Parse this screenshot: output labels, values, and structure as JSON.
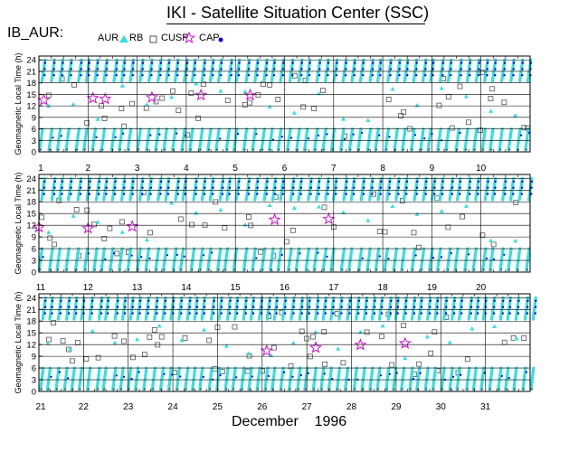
{
  "header": {
    "title": "IKI - Satellite Situation Center (SSC)",
    "dataset": "IB_AUR:"
  },
  "legend": {
    "items": [
      {
        "label": "AUR",
        "symbol": "filled-triangle",
        "color": "#33e0e0"
      },
      {
        "label": "RB",
        "symbol": "open-square",
        "color": "#444444"
      },
      {
        "label": "CUSP",
        "symbol": "open-star",
        "color": "#d10fcf"
      },
      {
        "label": "CAP",
        "symbol": "filled-dot",
        "color": "#0000e0"
      }
    ]
  },
  "footer": {
    "month": "December",
    "year": "1996"
  },
  "colors": {
    "aur": "#33e0e0",
    "rb": "#555555",
    "cusp": "#d10fcf",
    "cap": "#0a00d8",
    "grid": "#000000"
  },
  "chart_data": [
    {
      "type": "scatter",
      "ylabel": "Geomagnetic Local Time (h)",
      "ylim": [
        0,
        25
      ],
      "yticks": [
        0,
        3,
        6,
        9,
        12,
        15,
        18,
        21,
        24
      ],
      "xlim": [
        1,
        11
      ],
      "xticks": [
        "1",
        "2",
        "3",
        "4",
        "5",
        "6",
        "7",
        "8",
        "9",
        "10"
      ],
      "cusp_points": [
        [
          1.1,
          13.5
        ],
        [
          2.1,
          14
        ],
        [
          2.35,
          13.8
        ],
        [
          3.3,
          14.2
        ],
        [
          4.3,
          14.8
        ],
        [
          5.3,
          14.8
        ]
      ]
    },
    {
      "type": "scatter",
      "ylabel": "Geomagnetic Local Time (h)",
      "ylim": [
        0,
        25
      ],
      "yticks": [
        0,
        3,
        6,
        9,
        12,
        15,
        18,
        21,
        24
      ],
      "xlim": [
        11,
        21
      ],
      "xticks": [
        "11",
        "12",
        "13",
        "14",
        "15",
        "16",
        "17",
        "18",
        "19",
        "20"
      ],
      "cusp_points": [
        [
          11.0,
          11.5
        ],
        [
          12.0,
          11.2
        ],
        [
          12.9,
          11.7
        ],
        [
          15.8,
          13.4
        ],
        [
          16.9,
          13.6
        ]
      ]
    },
    {
      "type": "scatter",
      "ylabel": "Geomagnetic Local Time (h)",
      "ylim": [
        0,
        25
      ],
      "yticks": [
        0,
        3,
        6,
        9,
        12,
        15,
        18,
        21,
        24
      ],
      "xlim": [
        21,
        32
      ],
      "xticks": [
        "21",
        "22",
        "23",
        "24",
        "25",
        "26",
        "27",
        "28",
        "29",
        "30",
        "31"
      ],
      "cusp_points": [
        [
          26.1,
          10.4
        ],
        [
          27.2,
          11.2
        ],
        [
          28.2,
          11.9
        ],
        [
          29.2,
          12.3
        ]
      ]
    }
  ]
}
